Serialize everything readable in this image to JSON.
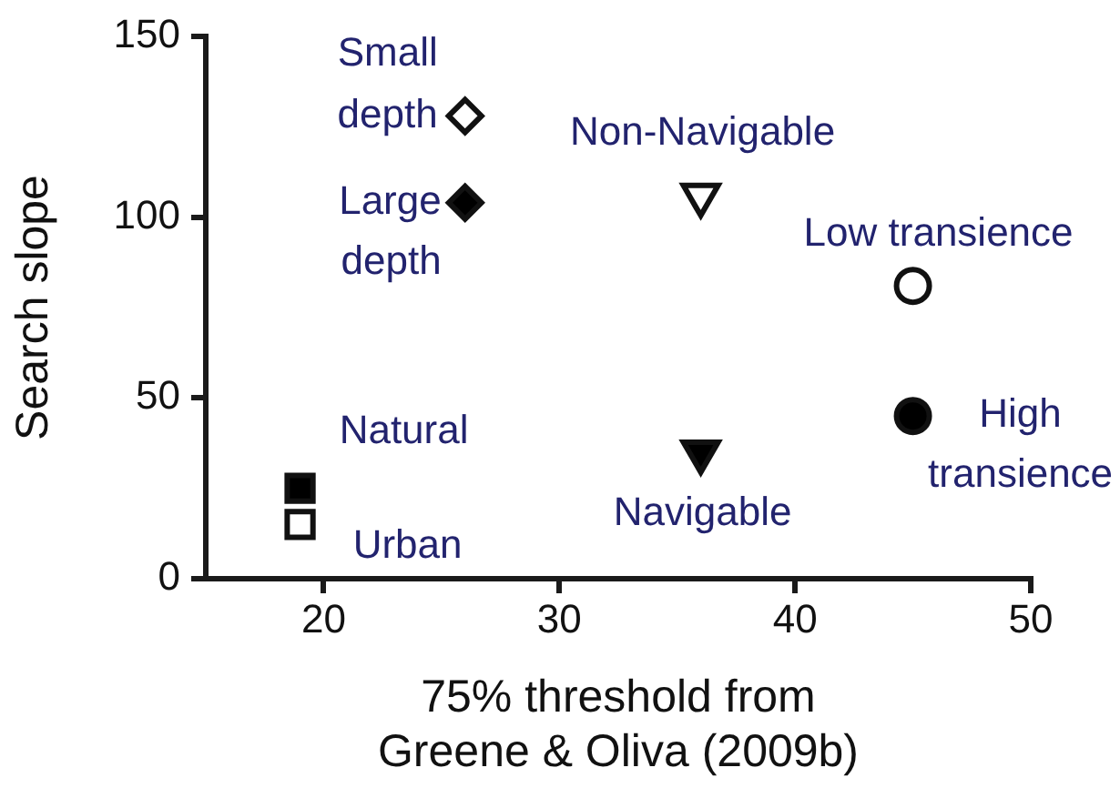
{
  "chart_data": {
    "type": "scatter",
    "xlabel": "75% threshold from Greene & Oliva (2009b)",
    "ylabel": "Search slope",
    "xlim": [
      15,
      50
    ],
    "xticks": [
      20,
      30,
      40,
      50
    ],
    "ylim": [
      0,
      150
    ],
    "yticks": [
      0,
      50,
      100,
      150
    ],
    "grid": false,
    "legend": false,
    "series": [
      {
        "name": "Small depth",
        "color": "#ffffff",
        "marker": "diamond",
        "x": [
          26
        ],
        "values": [
          128
        ]
      },
      {
        "name": "Large depth",
        "color": "#000000",
        "marker": "diamond",
        "x": [
          26
        ],
        "values": [
          104
        ]
      },
      {
        "name": "Non-Navigable",
        "color": "#ffffff",
        "marker": "triangle-down",
        "x": [
          36
        ],
        "values": [
          106
        ]
      },
      {
        "name": "Low transience",
        "color": "#ffffff",
        "marker": "circle",
        "x": [
          45
        ],
        "values": [
          81
        ]
      },
      {
        "name": "High transience",
        "color": "#000000",
        "marker": "circle",
        "x": [
          45
        ],
        "values": [
          45
        ]
      },
      {
        "name": "Navigable",
        "color": "#000000",
        "marker": "triangle-down",
        "x": [
          36
        ],
        "values": [
          35
        ]
      },
      {
        "name": "Natural",
        "color": "#000000",
        "marker": "square",
        "x": [
          19
        ],
        "values": [
          25
        ]
      },
      {
        "name": "Urban",
        "color": "#ffffff",
        "marker": "square",
        "x": [
          19
        ],
        "values": [
          15
        ]
      }
    ]
  }
}
